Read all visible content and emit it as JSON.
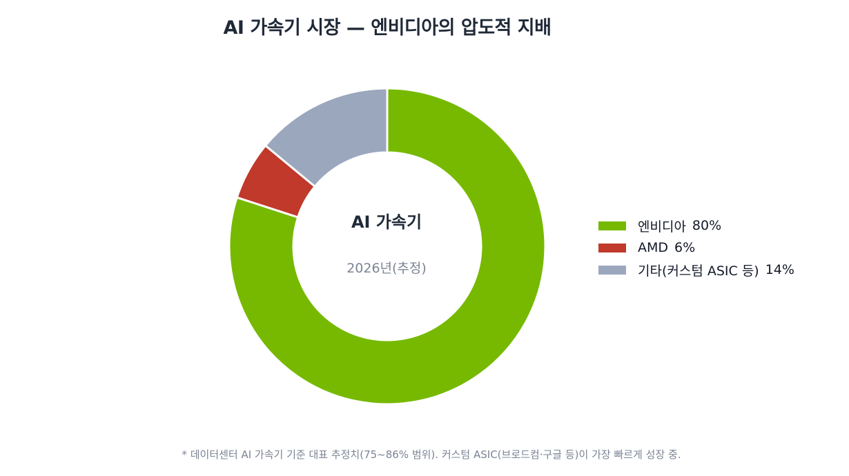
{
  "chart_data": {
    "type": "pie",
    "variant": "donut",
    "title": "AI 가속기 시장 — 엔비디아의 압도적 지배",
    "center_title": "AI 가속기",
    "center_subtitle": "2026년(추정)",
    "legend_position": "right",
    "unit": "%",
    "slices": [
      {
        "label": "엔비디아",
        "value": 80,
        "value_label": "80%",
        "color": "#76b900"
      },
      {
        "label": "AMD",
        "value": 6,
        "value_label": "6%",
        "color": "#c0392b"
      },
      {
        "label": "기타(커스텀 ASIC 등)",
        "value": 14,
        "value_label": "14%",
        "color": "#9ba7bd"
      }
    ],
    "footnote": "* 데이터센터 AI 가속기 기준 대표 추정치(75~86% 범위). 커스텀 ASIC(브로드컴·구글 등)이 가장 빠르게 성장 중."
  }
}
